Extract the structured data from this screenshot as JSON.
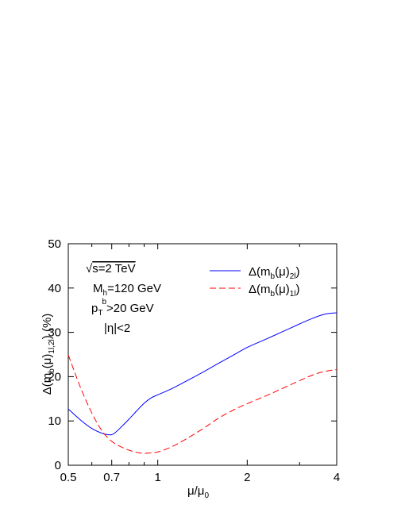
{
  "chart_data": {
    "type": "line",
    "x_scale": "log",
    "xlim": [
      0.5,
      4
    ],
    "ylim": [
      0,
      50
    ],
    "x_ticks": [
      {
        "value": 0.5,
        "label": "0.5"
      },
      {
        "value": 0.7,
        "label": "0.7"
      },
      {
        "value": 1,
        "label": "1"
      },
      {
        "value": 2,
        "label": "2"
      },
      {
        "value": 4,
        "label": "4"
      }
    ],
    "y_ticks": [
      {
        "value": 0,
        "label": "0"
      },
      {
        "value": 10,
        "label": "10"
      },
      {
        "value": 20,
        "label": "20"
      },
      {
        "value": 30,
        "label": "30"
      },
      {
        "value": 40,
        "label": "40"
      },
      {
        "value": 50,
        "label": "50"
      }
    ],
    "xlabel": {
      "main": "μ/μ",
      "sub": "0"
    },
    "ylabel": {
      "pre": "Δ(m",
      "sub1": "b",
      "mid": "(μ)",
      "sub2": "1l,2l",
      "post": ") (%)"
    },
    "annotations": {
      "sqrt_s": {
        "root": "√",
        "rest": "s=2 TeV"
      },
      "mh": {
        "main": "M",
        "sub": "h",
        "rest": "=120 GeV"
      },
      "pt": {
        "main": "p",
        "sub": "T",
        "sup": "b",
        "rest": ">20 GeV"
      },
      "eta": "|η|<2"
    },
    "legend_position": "top-right",
    "grid": false,
    "series": [
      {
        "legend": {
          "pre": "Δ(m",
          "sub1": "b",
          "mid": "(μ)",
          "sub2": "2l",
          "post": ")"
        },
        "color": "#0000ff",
        "dash": "solid",
        "x": [
          0.5,
          0.55,
          0.6,
          0.65,
          0.68,
          0.7,
          0.72,
          0.75,
          0.8,
          0.85,
          0.9,
          0.95,
          1.0,
          1.1,
          1.2,
          1.4,
          1.6,
          1.8,
          2.0,
          2.3,
          2.6,
          3.0,
          3.3,
          3.6,
          3.8,
          4.0
        ],
        "y": [
          12.7,
          10.2,
          8.3,
          7.2,
          6.9,
          6.9,
          7.4,
          8.5,
          10.4,
          12.3,
          14.0,
          15.2,
          15.9,
          17.1,
          18.4,
          20.8,
          23.0,
          24.9,
          26.6,
          28.4,
          30.0,
          31.9,
          33.1,
          34.0,
          34.3,
          34.4
        ]
      },
      {
        "legend": {
          "pre": "Δ(m",
          "sub1": "b",
          "mid": "(μ)",
          "sub2": "1l",
          "post": ")"
        },
        "color": "#ff0000",
        "dash": "dashed",
        "x": [
          0.5,
          0.55,
          0.6,
          0.65,
          0.7,
          0.75,
          0.8,
          0.85,
          0.9,
          0.95,
          1.0,
          1.1,
          1.2,
          1.4,
          1.6,
          1.8,
          2.0,
          2.3,
          2.6,
          3.0,
          3.3,
          3.6,
          4.0
        ],
        "y": [
          24.9,
          17.5,
          11.8,
          7.7,
          5.4,
          4.2,
          3.4,
          2.9,
          2.7,
          2.8,
          3.0,
          4.0,
          5.3,
          8.0,
          10.6,
          12.5,
          13.9,
          15.6,
          17.2,
          19.1,
          20.3,
          21.1,
          21.6
        ]
      }
    ]
  }
}
